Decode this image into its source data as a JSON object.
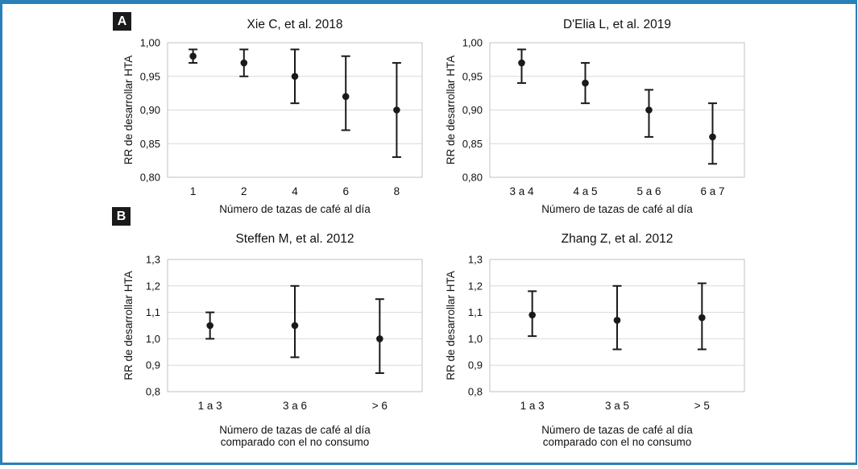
{
  "figure": {
    "panel_a_label": "A",
    "panel_b_label": "B"
  },
  "colors": {
    "frame_border": "#2980b9",
    "marker": "#1a1a1a",
    "grid": "#d9d9d9",
    "plot_border": "#c2c2c2",
    "text": "#111111",
    "panel_badge_bg": "#1a1a1a",
    "panel_badge_text": "#ffffff"
  },
  "chart_data": [
    {
      "type": "scatter",
      "panel": "A",
      "title": "Xie C, et al. 2018",
      "categories": [
        "1",
        "2",
        "4",
        "6",
        "8"
      ],
      "values": [
        0.98,
        0.97,
        0.95,
        0.92,
        0.9
      ],
      "ci_low": [
        0.97,
        0.95,
        0.91,
        0.87,
        0.83
      ],
      "ci_high": [
        0.99,
        0.99,
        0.99,
        0.98,
        0.97
      ],
      "ylim": [
        0.8,
        1.0
      ],
      "yticks": [
        {
          "value": 1.0,
          "label": "1,00"
        },
        {
          "value": 0.95,
          "label": "0,95"
        },
        {
          "value": 0.9,
          "label": "0,90"
        },
        {
          "value": 0.85,
          "label": "0,85"
        },
        {
          "value": 0.8,
          "label": "0,80"
        }
      ],
      "ylabel": "RR de desarrollar HTA",
      "xlabel_lines": [
        "Número de tazas de café al día"
      ],
      "grid": true,
      "legend": false
    },
    {
      "type": "scatter",
      "panel": "A",
      "title": "D'Elia L, et al. 2019",
      "categories": [
        "3 a 4",
        "4 a 5",
        "5 a 6",
        "6 a 7"
      ],
      "values": [
        0.97,
        0.94,
        0.9,
        0.86
      ],
      "ci_low": [
        0.94,
        0.91,
        0.86,
        0.82
      ],
      "ci_high": [
        0.99,
        0.97,
        0.93,
        0.91
      ],
      "ylim": [
        0.8,
        1.0
      ],
      "yticks": [
        {
          "value": 1.0,
          "label": "1,00"
        },
        {
          "value": 0.95,
          "label": "0,95"
        },
        {
          "value": 0.9,
          "label": "0,90"
        },
        {
          "value": 0.85,
          "label": "0,85"
        },
        {
          "value": 0.8,
          "label": "0,80"
        }
      ],
      "ylabel": "RR de desarrollar HTA",
      "xlabel_lines": [
        "Número de tazas de café al día"
      ],
      "grid": true,
      "legend": false
    },
    {
      "type": "scatter",
      "panel": "B",
      "title": "Steffen M, et al. 2012",
      "categories": [
        "1 a 3",
        "3 a 6",
        "> 6"
      ],
      "values": [
        1.05,
        1.05,
        1.0
      ],
      "ci_low": [
        1.0,
        0.93,
        0.87
      ],
      "ci_high": [
        1.1,
        1.2,
        1.15
      ],
      "ylim": [
        0.8,
        1.3
      ],
      "yticks": [
        {
          "value": 1.3,
          "label": "1,3"
        },
        {
          "value": 1.2,
          "label": "1,2"
        },
        {
          "value": 1.1,
          "label": "1,1"
        },
        {
          "value": 1.0,
          "label": "1,0"
        },
        {
          "value": 0.9,
          "label": "0,9"
        },
        {
          "value": 0.8,
          "label": "0,8"
        }
      ],
      "ylabel": "RR de desarrollar HTA",
      "xlabel_lines": [
        "Número de tazas de café al día",
        "comparado con el no consumo"
      ],
      "grid": true,
      "legend": false
    },
    {
      "type": "scatter",
      "panel": "B",
      "title": "Zhang Z, et al. 2012",
      "categories": [
        "1 a 3",
        "3 a 5",
        "> 5"
      ],
      "values": [
        1.09,
        1.07,
        1.08
      ],
      "ci_low": [
        1.01,
        0.96,
        0.96
      ],
      "ci_high": [
        1.18,
        1.2,
        1.21
      ],
      "ylim": [
        0.8,
        1.3
      ],
      "yticks": [
        {
          "value": 1.3,
          "label": "1,3"
        },
        {
          "value": 1.2,
          "label": "1,2"
        },
        {
          "value": 1.1,
          "label": "1,1"
        },
        {
          "value": 1.0,
          "label": "1,0"
        },
        {
          "value": 0.9,
          "label": "0,9"
        },
        {
          "value": 0.8,
          "label": "0,8"
        }
      ],
      "ylabel": "RR de desarrollar HTA",
      "xlabel_lines": [
        "Número de tazas de café al día",
        "comparado con el no consumo"
      ],
      "grid": true,
      "legend": false
    }
  ]
}
